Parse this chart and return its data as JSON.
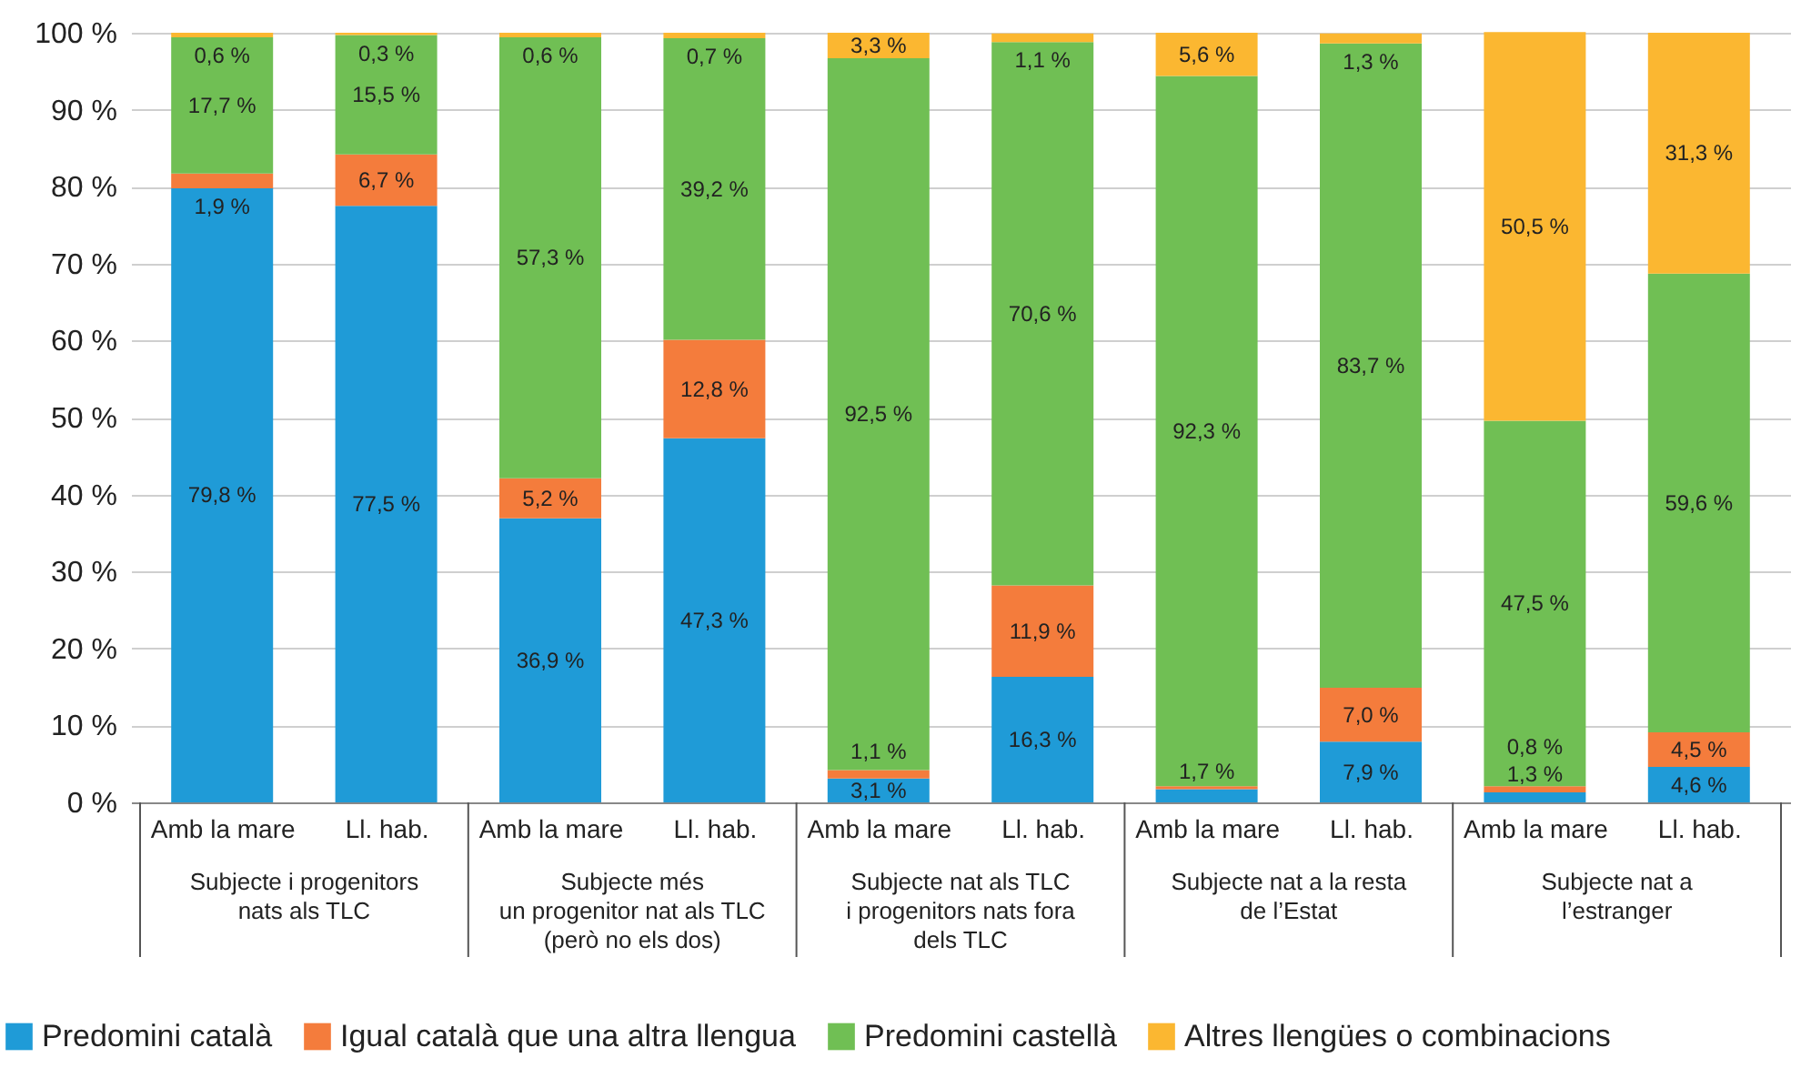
{
  "chart_data": {
    "type": "bar",
    "stacked": true,
    "categories": [
      "Amb la mare",
      "Ll. hab.",
      "Amb la mare",
      "Ll. hab.",
      "Amb la mare",
      "Ll. hab.",
      "Amb la mare",
      "Ll. hab.",
      "Amb la mare",
      "Ll. hab."
    ],
    "series": [
      {
        "name": "Predomini català",
        "color": "#1f9bd7",
        "values": [
          79.8,
          77.5,
          36.9,
          47.3,
          3.1,
          16.3,
          1.7,
          7.9,
          1.3,
          4.6
        ],
        "value_labels": [
          "79,8 %",
          "77,5 %",
          "36,9 %",
          "47,3 %",
          "3,1 %",
          "16,3 %",
          "1,7 %",
          "7,9 %",
          "1,3 %",
          "4,6 %"
        ]
      },
      {
        "name": "Igual català que una altra llengua",
        "color": "#f47c3c",
        "values": [
          1.9,
          6.7,
          5.2,
          12.8,
          1.1,
          11.9,
          0.4,
          7.0,
          0.8,
          4.5
        ],
        "value_labels": [
          "1,9 %",
          "6,7 %",
          "5,2 %",
          "12,8 %",
          "1,1 %",
          "11,9 %",
          null,
          "7,0 %",
          "0,8 %",
          "4,5 %"
        ]
      },
      {
        "name": "Predomini castellà",
        "color": "#70bf54",
        "values": [
          17.7,
          15.5,
          57.3,
          39.2,
          92.5,
          70.6,
          92.3,
          83.7,
          47.5,
          59.6
        ],
        "value_labels": [
          "17,7 %",
          "15,5 %",
          "57,3 %",
          "39,2 %",
          "92,5 %",
          "70,6 %",
          "92,3 %",
          "83,7 %",
          "47,5 %",
          "59,6 %"
        ]
      },
      {
        "name": "Altres llengües o combinacions",
        "color": "#fbb731",
        "values": [
          0.6,
          0.3,
          0.6,
          0.7,
          3.3,
          1.1,
          5.6,
          1.3,
          50.5,
          31.3
        ],
        "value_labels": [
          "0,6 %",
          "0,3 %",
          "0,6 %",
          "0,7 %",
          "3,3 %",
          "1,1 %",
          "5,6 %",
          "1,3 %",
          "50,5 %",
          "31,3 %"
        ]
      }
    ],
    "ylim": [
      0,
      100
    ],
    "yticks": [
      {
        "value": 0,
        "label": "0 %"
      },
      {
        "value": 10,
        "label": "10 %"
      },
      {
        "value": 20,
        "label": "20 %"
      },
      {
        "value": 30,
        "label": "30 %"
      },
      {
        "value": 40,
        "label": "40 %"
      },
      {
        "value": 50,
        "label": "50 %"
      },
      {
        "value": 60,
        "label": "60 %"
      },
      {
        "value": 70,
        "label": "70 %"
      },
      {
        "value": 80,
        "label": "80 %"
      },
      {
        "value": 90,
        "label": "90 %"
      },
      {
        "value": 100,
        "label": "100 %"
      }
    ],
    "grid": "y",
    "legend": "bottom",
    "annotations": [
      "Subjecte i progenitors\nnats als TLC",
      "Subjecte més\nun progenitor nat als TLC\n(però no els dos)",
      "Subjecte nat als TLC\ni progenitors nats fora\ndels TLC",
      "Subjecte nat a la resta\nde l’Estat",
      "Subjecte nat a\nl’estranger"
    ]
  }
}
